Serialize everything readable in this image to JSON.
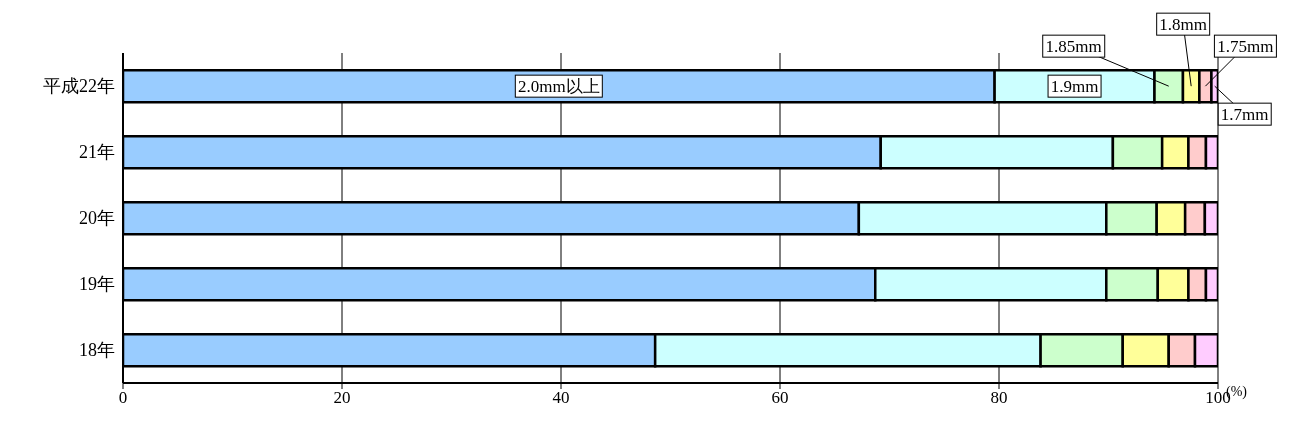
{
  "chart_data": {
    "type": "bar",
    "orientation": "horizontal",
    "stacked": true,
    "categories": [
      "平成22年",
      "21年",
      "20年",
      "19年",
      "18年"
    ],
    "series": [
      {
        "name": "2.0mm以上",
        "color": "#99ccff",
        "values": [
          79.6,
          69.2,
          67.2,
          68.7,
          48.6
        ]
      },
      {
        "name": "1.9mm",
        "color": "#ccffff",
        "values": [
          14.6,
          21.2,
          22.6,
          21.1,
          35.2
        ]
      },
      {
        "name": "1.85mm",
        "color": "#ccffcc",
        "values": [
          2.6,
          4.5,
          4.6,
          4.7,
          7.5
        ]
      },
      {
        "name": "1.8mm",
        "color": "#ffff99",
        "values": [
          1.5,
          2.4,
          2.6,
          2.8,
          4.2
        ]
      },
      {
        "name": "1.75mm",
        "color": "#ffcccc",
        "values": [
          1.1,
          1.6,
          1.8,
          1.6,
          2.4
        ]
      },
      {
        "name": "1.7mm",
        "color": "#ffccff",
        "values": [
          0.6,
          1.1,
          1.2,
          1.1,
          2.1
        ]
      }
    ],
    "xlim": [
      0,
      100
    ],
    "xticks": [
      0,
      20,
      40,
      60,
      80,
      100
    ],
    "xlabel": "(%)",
    "grid": "x",
    "legend": "top right"
  }
}
